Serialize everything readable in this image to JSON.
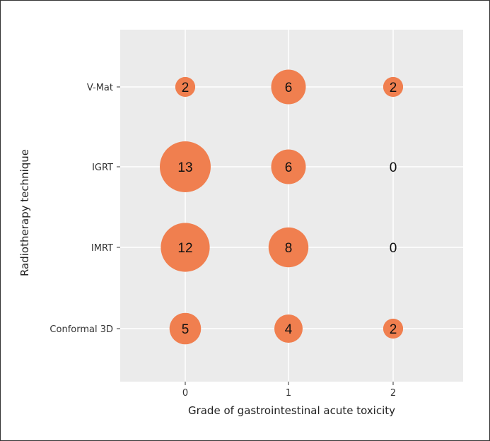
{
  "chart_data": {
    "type": "scatter",
    "subtype": "bubble",
    "title": "",
    "xlabel": "Grade of gastrointestinal acute toxicity",
    "ylabel": "Radiotherapy technique",
    "x_categories": [
      "0",
      "1",
      "2"
    ],
    "y_categories": [
      "Conformal 3D",
      "IMRT",
      "IGRT",
      "V-Mat"
    ],
    "points": [
      {
        "technique": "V-Mat",
        "grade": "0",
        "count": 2
      },
      {
        "technique": "V-Mat",
        "grade": "1",
        "count": 6
      },
      {
        "technique": "V-Mat",
        "grade": "2",
        "count": 2
      },
      {
        "technique": "IGRT",
        "grade": "0",
        "count": 13
      },
      {
        "technique": "IGRT",
        "grade": "1",
        "count": 6
      },
      {
        "technique": "IGRT",
        "grade": "2",
        "count": 0
      },
      {
        "technique": "IMRT",
        "grade": "0",
        "count": 12
      },
      {
        "technique": "IMRT",
        "grade": "1",
        "count": 8
      },
      {
        "technique": "IMRT",
        "grade": "2",
        "count": 0
      },
      {
        "technique": "Conformal 3D",
        "grade": "0",
        "count": 5
      },
      {
        "technique": "Conformal 3D",
        "grade": "1",
        "count": 4
      },
      {
        "technique": "Conformal 3D",
        "grade": "2",
        "count": 2
      }
    ],
    "grid": true,
    "legend": "none",
    "colors": {
      "panel": "#ebebeb",
      "grid": "#ffffff",
      "bubble": "#f07f4f"
    }
  }
}
